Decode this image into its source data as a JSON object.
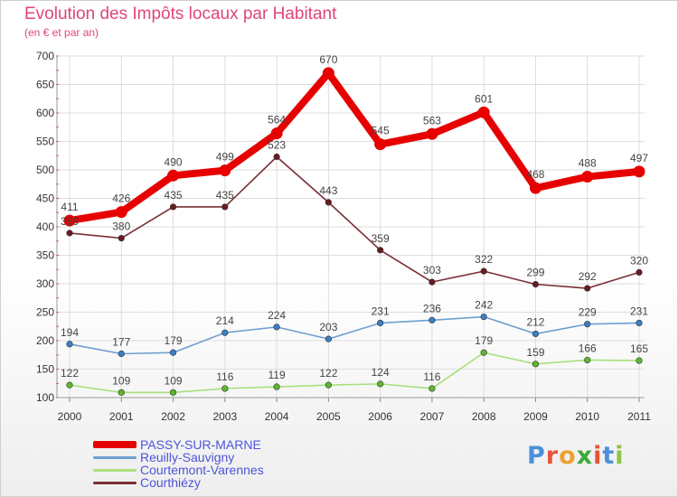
{
  "header": {
    "title": "Evolution des Impôts locaux par Habitant",
    "subtitle": "(en € et par an)"
  },
  "logo": {
    "text": "Proxiti",
    "letters": [
      "P",
      "r",
      "o",
      "x",
      "i",
      "t",
      "i"
    ],
    "letter_colors": [
      "#4a90d9",
      "#e8543a",
      "#f0a030",
      "#3aaa3a",
      "#e8543a",
      "#4a90d9",
      "#8bc34a"
    ]
  },
  "chart_data": {
    "type": "line",
    "title": "Evolution des Impôts locaux par Habitant",
    "subtitle": "(en € et par an)",
    "xlabel": "",
    "ylabel": "",
    "x": [
      "2000",
      "2001",
      "2002",
      "2003",
      "2004",
      "2005",
      "2006",
      "2007",
      "2008",
      "2009",
      "2010",
      "2011"
    ],
    "ylim": [
      100,
      700
    ],
    "yticks": [
      100,
      150,
      200,
      250,
      300,
      350,
      400,
      450,
      500,
      550,
      600,
      650,
      700
    ],
    "grid": true,
    "legend_position": "bottom-left",
    "series": [
      {
        "name": "PASSY-SUR-MARNE",
        "values": [
          411,
          426,
          490,
          499,
          564,
          670,
          545,
          563,
          601,
          468,
          488,
          497
        ],
        "labels": [
          "411",
          "426",
          "490",
          "499",
          "564",
          "670",
          "545",
          "563",
          "601",
          "468",
          "488",
          "497"
        ],
        "color": "#e60000",
        "marker_color": "#e60000",
        "weight": "thick"
      },
      {
        "name": "Reuilly-Sauvigny",
        "values": [
          194,
          177,
          179,
          214,
          224,
          203,
          231,
          236,
          242,
          212,
          229,
          231
        ],
        "labels": [
          "194",
          "177",
          "179",
          "214",
          "224",
          "203",
          "231",
          "236",
          "242",
          "212",
          "229",
          "231"
        ],
        "color": "#6f9fd0",
        "marker_color": "#3b7fc4",
        "weight": "thin"
      },
      {
        "name": "Courtemont-Varennes",
        "values": [
          122,
          109,
          109,
          116,
          119,
          122,
          124,
          116,
          179,
          159,
          166,
          165
        ],
        "labels": [
          "122",
          "109",
          "109",
          "116",
          "119",
          "122",
          "124",
          "116",
          "179",
          "159",
          "166",
          "165"
        ],
        "color": "#a8e07c",
        "marker_color": "#5cb82e",
        "weight": "thin"
      },
      {
        "name": "Courthiézy",
        "values": [
          389,
          380,
          435,
          435,
          523,
          443,
          359,
          303,
          322,
          299,
          292,
          320
        ],
        "labels": [
          "389",
          "380",
          "435",
          "435",
          "523",
          "443",
          "359",
          "303",
          "322",
          "299",
          "292",
          "320"
        ],
        "color": "#7a2e35",
        "marker_color": "#6a1a22",
        "weight": "thin"
      }
    ]
  }
}
